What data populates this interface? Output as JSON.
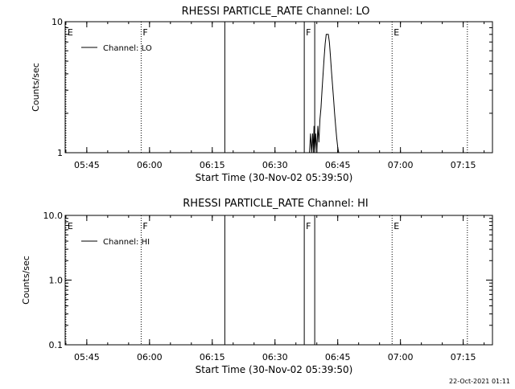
{
  "timestamp": "22-Oct-2021 01:11",
  "chart_data": [
    {
      "type": "line",
      "title": "RHESSI PARTICLE_RATE Channel: LO",
      "xlabel": "Start Time (30-Nov-02 05:39:50)",
      "ylabel": "Counts/sec",
      "yscale": "log",
      "ylim": [
        1,
        10
      ],
      "xlim": [
        "05:39:50",
        "07:22:00"
      ],
      "x_ticks": [
        "05:45",
        "06:00",
        "06:15",
        "06:30",
        "06:45",
        "07:00",
        "07:15"
      ],
      "y_ticks": [
        "1",
        "10"
      ],
      "legend": {
        "label": "Channel: LO",
        "position": "top-left"
      },
      "grid": false,
      "series": [
        {
          "name": "Channel: LO",
          "x": [
            "06:38:15",
            "06:38:30",
            "06:38:45",
            "06:39:00",
            "06:39:10",
            "06:39:20",
            "06:39:30",
            "06:39:45",
            "06:40:00",
            "06:40:15",
            "06:40:30",
            "06:40:45",
            "06:41:00",
            "06:41:15",
            "06:41:30",
            "06:41:45",
            "06:42:00",
            "06:42:15",
            "06:42:30",
            "06:42:45",
            "06:43:00",
            "06:43:15",
            "06:43:30",
            "06:43:45",
            "06:44:00",
            "06:44:15",
            "06:44:30",
            "06:44:45",
            "06:45:00",
            "06:45:15",
            "06:45:30"
          ],
          "y": [
            1,
            1.4,
            1,
            1.4,
            1,
            1.6,
            1,
            1.4,
            1,
            1.6,
            1.2,
            1.8,
            2.2,
            3,
            4,
            5.3,
            6.8,
            8,
            8,
            8,
            7,
            5.5,
            4.2,
            3.3,
            2.6,
            2,
            1.6,
            1.3,
            1.1,
            1,
            1
          ]
        }
      ],
      "markers": [
        {
          "label": "E",
          "x": "05:40:00",
          "style": "dotted"
        },
        {
          "label": "F",
          "x": "05:58:00",
          "style": "dotted"
        },
        {
          "label": "",
          "x": "06:18:00",
          "style": "solid"
        },
        {
          "label": "F",
          "x": "06:37:00",
          "style": "solid"
        },
        {
          "label": "",
          "x": "06:39:30",
          "style": "solid"
        },
        {
          "label": "E",
          "x": "06:58:00",
          "style": "dotted"
        },
        {
          "label": "",
          "x": "07:16:00",
          "style": "dotted"
        }
      ]
    },
    {
      "type": "line",
      "title": "RHESSI PARTICLE_RATE Channel: HI",
      "xlabel": "Start Time (30-Nov-02 05:39:50)",
      "ylabel": "Counts/sec",
      "yscale": "log",
      "ylim": [
        0.1,
        10
      ],
      "xlim": [
        "05:39:50",
        "07:22:00"
      ],
      "x_ticks": [
        "05:45",
        "06:00",
        "06:15",
        "06:30",
        "06:45",
        "07:00",
        "07:15"
      ],
      "y_ticks": [
        "0.1",
        "1.0",
        "10.0"
      ],
      "legend": {
        "label": "Channel: HI",
        "position": "top-left"
      },
      "grid": false,
      "series": [
        {
          "name": "Channel: HI",
          "x": [],
          "y": []
        }
      ],
      "markers": [
        {
          "label": "E",
          "x": "05:40:00",
          "style": "dotted"
        },
        {
          "label": "F",
          "x": "05:58:00",
          "style": "dotted"
        },
        {
          "label": "",
          "x": "06:18:00",
          "style": "solid"
        },
        {
          "label": "F",
          "x": "06:37:00",
          "style": "solid"
        },
        {
          "label": "",
          "x": "06:39:30",
          "style": "solid"
        },
        {
          "label": "E",
          "x": "06:58:00",
          "style": "dotted"
        },
        {
          "label": "",
          "x": "07:16:00",
          "style": "dotted"
        }
      ]
    }
  ]
}
